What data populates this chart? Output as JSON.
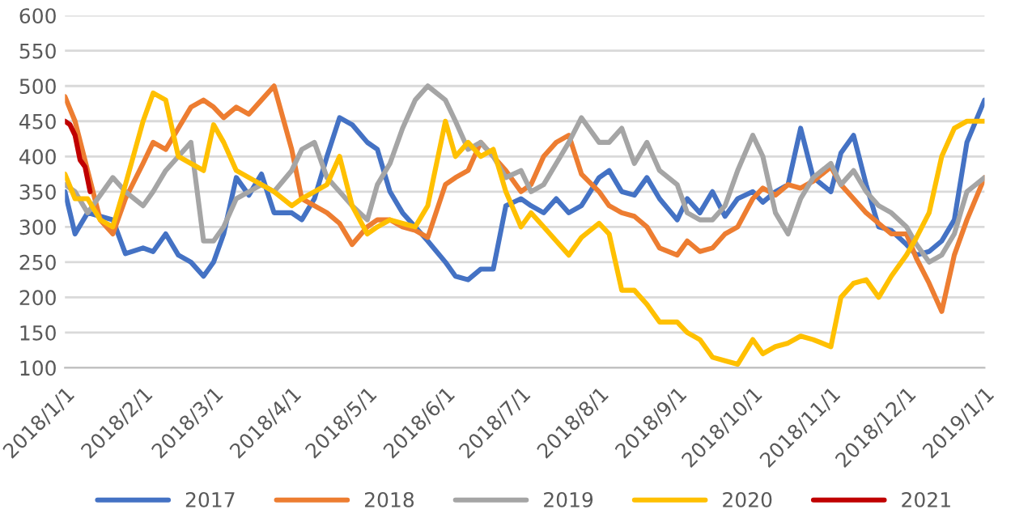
{
  "chart_data": {
    "type": "line",
    "x": [
      "2018-01-01",
      "2018-01-05",
      "2018-01-10",
      "2018-01-15",
      "2018-01-20",
      "2018-01-25",
      "2018-02-01",
      "2018-02-05",
      "2018-02-10",
      "2018-02-15",
      "2018-02-20",
      "2018-02-25",
      "2018-03-01",
      "2018-03-05",
      "2018-03-10",
      "2018-03-15",
      "2018-03-20",
      "2018-03-25",
      "2018-04-01",
      "2018-04-05",
      "2018-04-10",
      "2018-04-15",
      "2018-04-20",
      "2018-04-25",
      "2018-05-01",
      "2018-05-05",
      "2018-05-10",
      "2018-05-15",
      "2018-05-20",
      "2018-05-25",
      "2018-06-01",
      "2018-06-05",
      "2018-06-10",
      "2018-06-15",
      "2018-06-20",
      "2018-06-25",
      "2018-07-01",
      "2018-07-05",
      "2018-07-10",
      "2018-07-15",
      "2018-07-20",
      "2018-07-25",
      "2018-08-01",
      "2018-08-05",
      "2018-08-10",
      "2018-08-15",
      "2018-08-20",
      "2018-08-25",
      "2018-09-01",
      "2018-09-05",
      "2018-09-10",
      "2018-09-15",
      "2018-09-20",
      "2018-09-25",
      "2018-10-01",
      "2018-10-05",
      "2018-10-10",
      "2018-10-15",
      "2018-10-20",
      "2018-10-25",
      "2018-11-01",
      "2018-11-05",
      "2018-11-10",
      "2018-11-15",
      "2018-11-20",
      "2018-11-25",
      "2018-12-01",
      "2018-12-05",
      "2018-12-10",
      "2018-12-15",
      "2018-12-20",
      "2018-12-25",
      "2019-01-01"
    ],
    "series": [
      {
        "name": "2017",
        "color": "#4472c4",
        "values": [
          350,
          290,
          320,
          315,
          310,
          262,
          270,
          265,
          290,
          260,
          250,
          230,
          250,
          290,
          370,
          345,
          375,
          320,
          320,
          310,
          340,
          400,
          455,
          445,
          420,
          410,
          350,
          320,
          300,
          280,
          250,
          230,
          225,
          240,
          240,
          330,
          340,
          330,
          320,
          340,
          320,
          330,
          370,
          380,
          350,
          345,
          370,
          340,
          310,
          340,
          320,
          350,
          315,
          340,
          350,
          335,
          350,
          360,
          440,
          370,
          350,
          405,
          430,
          360,
          300,
          295,
          275,
          260,
          265,
          280,
          310,
          420,
          480
        ]
      },
      {
        "name": "2018",
        "color": "#ed7d31",
        "values": [
          485,
          450,
          380,
          310,
          290,
          340,
          390,
          420,
          410,
          440,
          470,
          480,
          470,
          455,
          470,
          460,
          480,
          500,
          410,
          340,
          330,
          320,
          305,
          275,
          300,
          310,
          310,
          300,
          295,
          285,
          360,
          370,
          380,
          420,
          400,
          380,
          350,
          360,
          400,
          420,
          430,
          375,
          350,
          330,
          320,
          315,
          300,
          270,
          260,
          280,
          265,
          270,
          290,
          300,
          340,
          355,
          345,
          360,
          355,
          365,
          385,
          360,
          340,
          320,
          305,
          290,
          290,
          255,
          220,
          180,
          260,
          310,
          370
        ]
      },
      {
        "name": "2019",
        "color": "#a5a5a5",
        "values": [
          360,
          350,
          320,
          345,
          370,
          350,
          330,
          350,
          380,
          400,
          420,
          280,
          280,
          300,
          340,
          350,
          360,
          350,
          380,
          410,
          420,
          370,
          350,
          330,
          310,
          360,
          390,
          440,
          480,
          500,
          480,
          450,
          410,
          420,
          400,
          370,
          380,
          350,
          360,
          390,
          420,
          455,
          420,
          420,
          440,
          390,
          420,
          380,
          360,
          320,
          310,
          310,
          330,
          380,
          430,
          400,
          320,
          290,
          340,
          370,
          390,
          360,
          380,
          350,
          330,
          320,
          300,
          275,
          250,
          260,
          290,
          350,
          370
        ]
      },
      {
        "name": "2020",
        "color": "#ffc000",
        "values": [
          375,
          340,
          340,
          310,
          300,
          360,
          450,
          490,
          480,
          400,
          390,
          380,
          445,
          420,
          380,
          370,
          360,
          350,
          330,
          340,
          350,
          360,
          400,
          330,
          290,
          300,
          310,
          305,
          300,
          330,
          450,
          400,
          420,
          400,
          410,
          350,
          300,
          320,
          300,
          280,
          260,
          285,
          305,
          290,
          210,
          210,
          190,
          165,
          165,
          150,
          140,
          115,
          110,
          105,
          140,
          120,
          130,
          135,
          145,
          140,
          130,
          200,
          220,
          225,
          200,
          230,
          260,
          285,
          320,
          400,
          440,
          450,
          450
        ]
      },
      {
        "name": "2021",
        "color": "#c00000",
        "x": [
          "2018-01-01",
          "2018-01-03",
          "2018-01-05",
          "2018-01-07",
          "2018-01-09",
          "2018-01-11"
        ],
        "values": [
          450,
          445,
          430,
          395,
          385,
          350
        ]
      }
    ],
    "xlim": [
      "2018-01-01",
      "2019-01-01"
    ],
    "xticks": [
      {
        "value": "2018-01-01",
        "label": "2018/1/1"
      },
      {
        "value": "2018-02-01",
        "label": "2018/2/1"
      },
      {
        "value": "2018-03-01",
        "label": "2018/3/1"
      },
      {
        "value": "2018-04-01",
        "label": "2018/4/1"
      },
      {
        "value": "2018-05-01",
        "label": "2018/5/1"
      },
      {
        "value": "2018-06-01",
        "label": "2018/6/1"
      },
      {
        "value": "2018-07-01",
        "label": "2018/7/1"
      },
      {
        "value": "2018-08-01",
        "label": "2018/8/1"
      },
      {
        "value": "2018-09-01",
        "label": "2018/9/1"
      },
      {
        "value": "2018-10-01",
        "label": "2018/10/1"
      },
      {
        "value": "2018-11-01",
        "label": "2018/11/1"
      },
      {
        "value": "2018-12-01",
        "label": "2018/12/1"
      },
      {
        "value": "2019-01-01",
        "label": "2019/1/1"
      }
    ],
    "ylim": [
      100,
      600
    ],
    "yticks": [
      100,
      150,
      200,
      250,
      300,
      350,
      400,
      450,
      500,
      550,
      600
    ],
    "grid": "y",
    "legend": "bottom",
    "marker": "none",
    "line_style": "solid"
  }
}
